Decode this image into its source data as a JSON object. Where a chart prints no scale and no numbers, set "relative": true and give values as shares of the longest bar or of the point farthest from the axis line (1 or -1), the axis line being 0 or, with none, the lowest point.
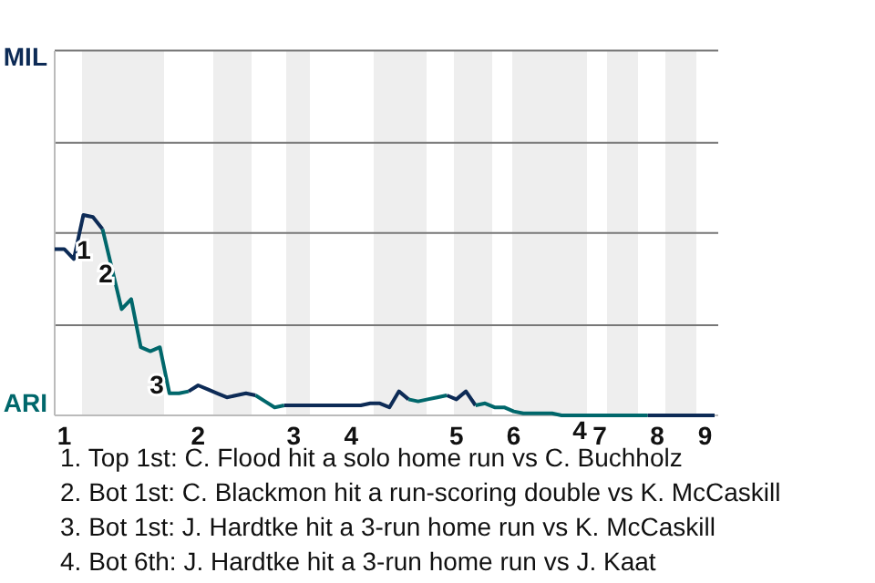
{
  "chart_data": {
    "type": "line",
    "relative": true,
    "marker": "none",
    "categories": [
      null,
      "1",
      null,
      null,
      null,
      null,
      null,
      null,
      null,
      null,
      null,
      null,
      null,
      null,
      null,
      "2",
      null,
      null,
      null,
      null,
      null,
      null,
      null,
      null,
      null,
      "3",
      null,
      null,
      null,
      null,
      null,
      "4",
      null,
      null,
      null,
      null,
      null,
      null,
      null,
      null,
      null,
      null,
      "5",
      null,
      null,
      null,
      null,
      null,
      "6",
      null,
      null,
      null,
      null,
      null,
      null,
      null,
      null,
      "7",
      null,
      null,
      null,
      null,
      null,
      "8",
      null,
      null,
      null,
      null,
      "9",
      null
    ],
    "series": [
      {
        "color": "#0d2b56",
        "values": [
          0.83,
          0.83,
          0.78,
          1,
          0.99,
          0.93,
          null,
          null,
          null,
          null,
          null,
          null,
          null,
          null,
          0.12,
          0.15,
          0.13,
          0.11,
          0.09,
          0.1,
          0.11,
          0.1,
          null,
          null,
          0.05,
          0.05,
          0.05,
          0.05,
          0.05,
          0.05,
          0.05,
          0.05,
          0.05,
          0.06,
          0.06,
          0.04,
          0.12,
          0.08,
          null,
          null,
          null,
          0.1,
          0.08,
          0.12,
          0.05,
          null,
          null,
          null,
          null,
          null,
          null,
          null,
          null,
          null,
          null,
          null,
          null,
          null,
          null,
          null,
          null,
          null,
          0,
          0,
          0,
          0,
          0,
          0,
          0,
          0
        ]
      },
      {
        "color": "#00676b",
        "values": [
          null,
          null,
          null,
          null,
          null,
          0.93,
          0.73,
          0.53,
          0.58,
          0.34,
          0.32,
          0.34,
          0.11,
          0.11,
          0.12,
          null,
          null,
          null,
          null,
          null,
          null,
          0.1,
          0.07,
          0.04,
          0.05,
          null,
          null,
          null,
          null,
          null,
          null,
          null,
          null,
          null,
          null,
          null,
          null,
          0.08,
          0.07,
          0.08,
          0.09,
          0.1,
          null,
          null,
          0.05,
          0.06,
          0.04,
          0.04,
          0.02,
          0.01,
          0.01,
          0.01,
          0.01,
          0,
          0,
          0,
          0,
          0,
          0,
          0,
          0,
          0,
          0,
          null,
          null,
          null,
          null,
          null,
          null,
          null
        ]
      }
    ],
    "ref_lines": [
      {
        "axis": "y",
        "value": 0.45
      },
      {
        "axis": "y",
        "value": 0.91
      },
      {
        "axis": "y",
        "value": 1.36
      },
      {
        "axis": "y",
        "value": 1.82
      }
    ],
    "annotations": [
      "MIL",
      "ARI",
      "1",
      "2",
      "3",
      "4",
      "1. Top 1st: C. Flood hit a solo home run vs C. Buchholz",
      "2. Bot 1st: C. Blackmon hit a run-scoring double vs K. McCaskill",
      "3. Bot 1st: J. Hardtke hit a 3-run home run vs K. McCaskill",
      "4. Bot 6th: J. Hardtke hit a 3-run home run vs J. Kaat"
    ]
  }
}
